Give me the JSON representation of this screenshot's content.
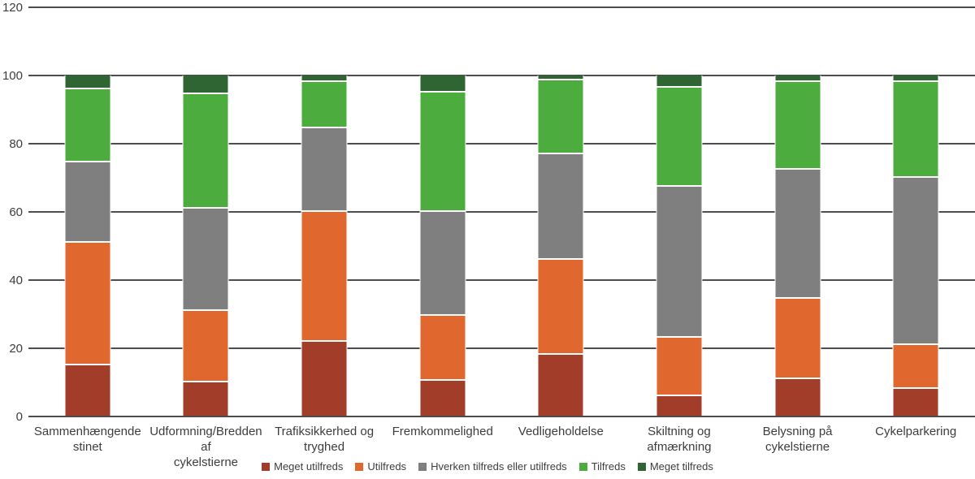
{
  "chart_data": {
    "type": "bar",
    "stacked": true,
    "percent_scale": true,
    "categories": [
      "Sammenhængende\nstinet",
      "Udformning/Bredden af\ncykelstierne",
      "Trafiksikkerhed og\ntryghed",
      "Fremkommelighed",
      "Vedligeholdelse",
      "Skiltning og\nafmærkning",
      "Belysning på\ncykelstierne",
      "Cykelparkering"
    ],
    "series": [
      {
        "name": "Meget utilfreds",
        "color": "#A13D29",
        "values": [
          15,
          10,
          22,
          10.5,
          18,
          6,
          11,
          8
        ]
      },
      {
        "name": "Utilfreds",
        "color": "#E0682F",
        "values": [
          36,
          21,
          38,
          19,
          28,
          17,
          23.5,
          13
        ]
      },
      {
        "name": "Hverken tilfreds eller utilfreds",
        "color": "#7F7F7F",
        "values": [
          23.5,
          30,
          24.5,
          30.5,
          31,
          44.5,
          38,
          49
        ]
      },
      {
        "name": "Tilfreds",
        "color": "#4CAC3D",
        "values": [
          21.5,
          33.5,
          13.5,
          35,
          21.5,
          29,
          25.5,
          28
        ]
      },
      {
        "name": "Meget tilfreds",
        "color": "#2F6433",
        "values": [
          4,
          5.5,
          2,
          5,
          1.5,
          3.5,
          2,
          2
        ]
      }
    ],
    "y_ticks": [
      0,
      20,
      40,
      60,
      80,
      100,
      120
    ],
    "ylim": [
      0,
      120
    ],
    "grid": true,
    "legend_position": "bottom"
  },
  "style": {
    "gridline_color": "#4d4d4d",
    "axis_line_color": "#4d4d4d",
    "text_color": "#3d3d3d",
    "background": "#ffffff"
  }
}
